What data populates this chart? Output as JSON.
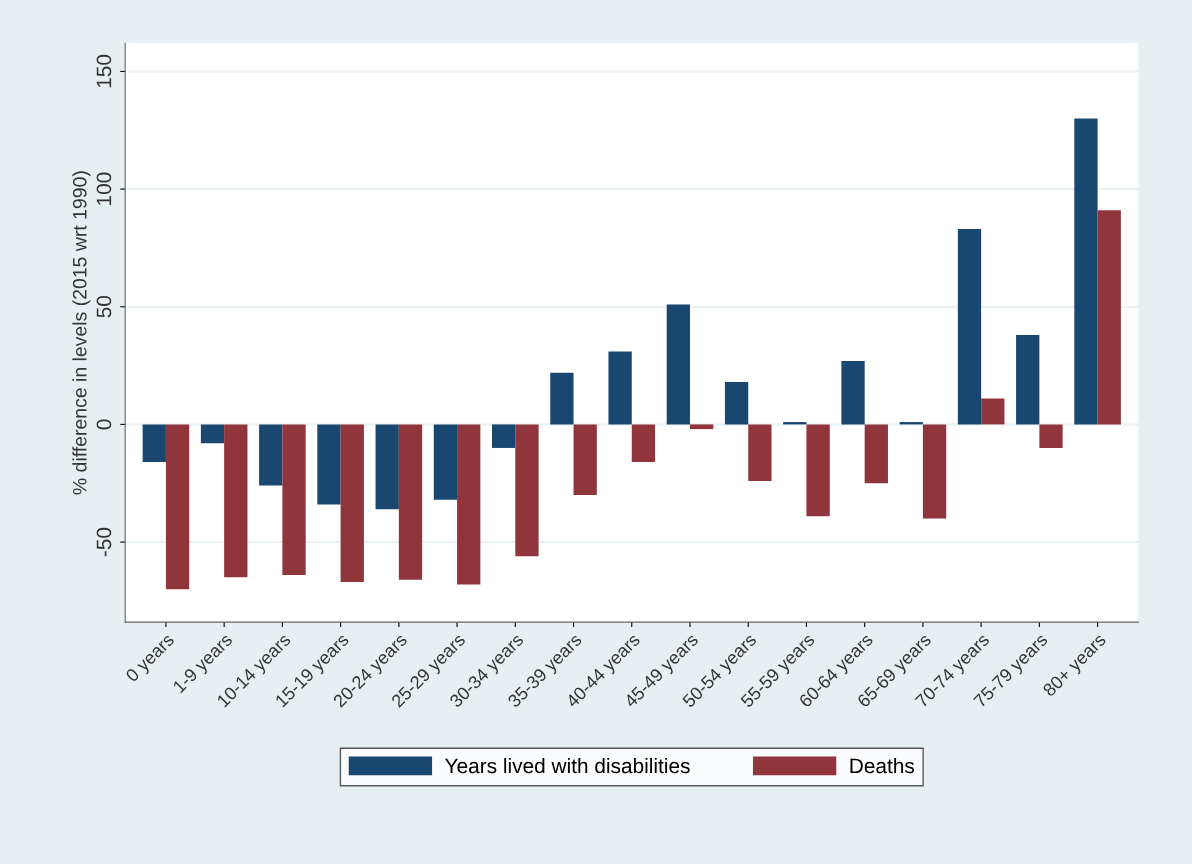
{
  "chart_data": {
    "type": "bar",
    "ylabel": "% difference in levels (2015 wrt 1990)",
    "categories": [
      "0 years",
      "1-9 years",
      "10-14 years",
      "15-19 years",
      "20-24 years",
      "25-29 years",
      "30-34 years",
      "35-39 years",
      "40-44 years",
      "45-49 years",
      "50-54 years",
      "55-59 years",
      "60-64 years",
      "65-69 years",
      "70-74 years",
      "75-79 years",
      "80+ years"
    ],
    "series": [
      {
        "name": "Years lived with disabilities",
        "color": "#1a476f",
        "values": [
          -16,
          -8,
          -26,
          -34,
          -36,
          -32,
          -10,
          22,
          31,
          51,
          18,
          1,
          27,
          1,
          83,
          38,
          130
        ]
      },
      {
        "name": "Deaths",
        "color": "#90353b",
        "values": [
          -70,
          -65,
          -64,
          -67,
          -66,
          -68,
          -56,
          -30,
          -16,
          -2,
          -24,
          -39,
          -25,
          -40,
          11,
          -10,
          91
        ]
      }
    ],
    "ylim": [
      -84,
      162
    ],
    "yticks": [
      -50,
      0,
      50,
      100,
      150
    ],
    "grid": "y",
    "legend": "bottom"
  }
}
